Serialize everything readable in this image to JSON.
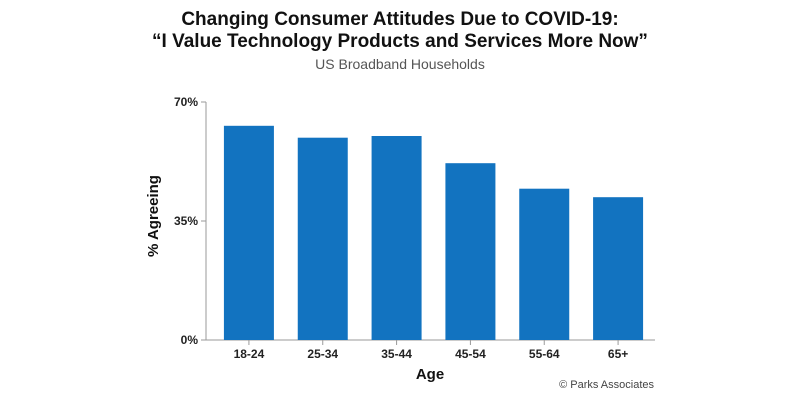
{
  "chart_data": {
    "type": "bar",
    "title_line_1": "Changing Consumer Attitudes Due to COVID-19:",
    "title_line_2": "“I Value Technology Products and Services More Now”",
    "subtitle": "US Broadband Households",
    "xlabel": "Age",
    "ylabel": "% Agreeing",
    "categories": [
      "18-24",
      "25-34",
      "35-44",
      "45-54",
      "55-64",
      "65+"
    ],
    "values": [
      63,
      59.5,
      60,
      52,
      44.5,
      42
    ],
    "ylim": [
      0,
      70
    ],
    "yticks": [
      0,
      35,
      70
    ],
    "ytick_labels": [
      "0%",
      "35%",
      "70%"
    ],
    "bar_color": "#1273c0",
    "grid": false
  },
  "credit": "© Parks Associates"
}
